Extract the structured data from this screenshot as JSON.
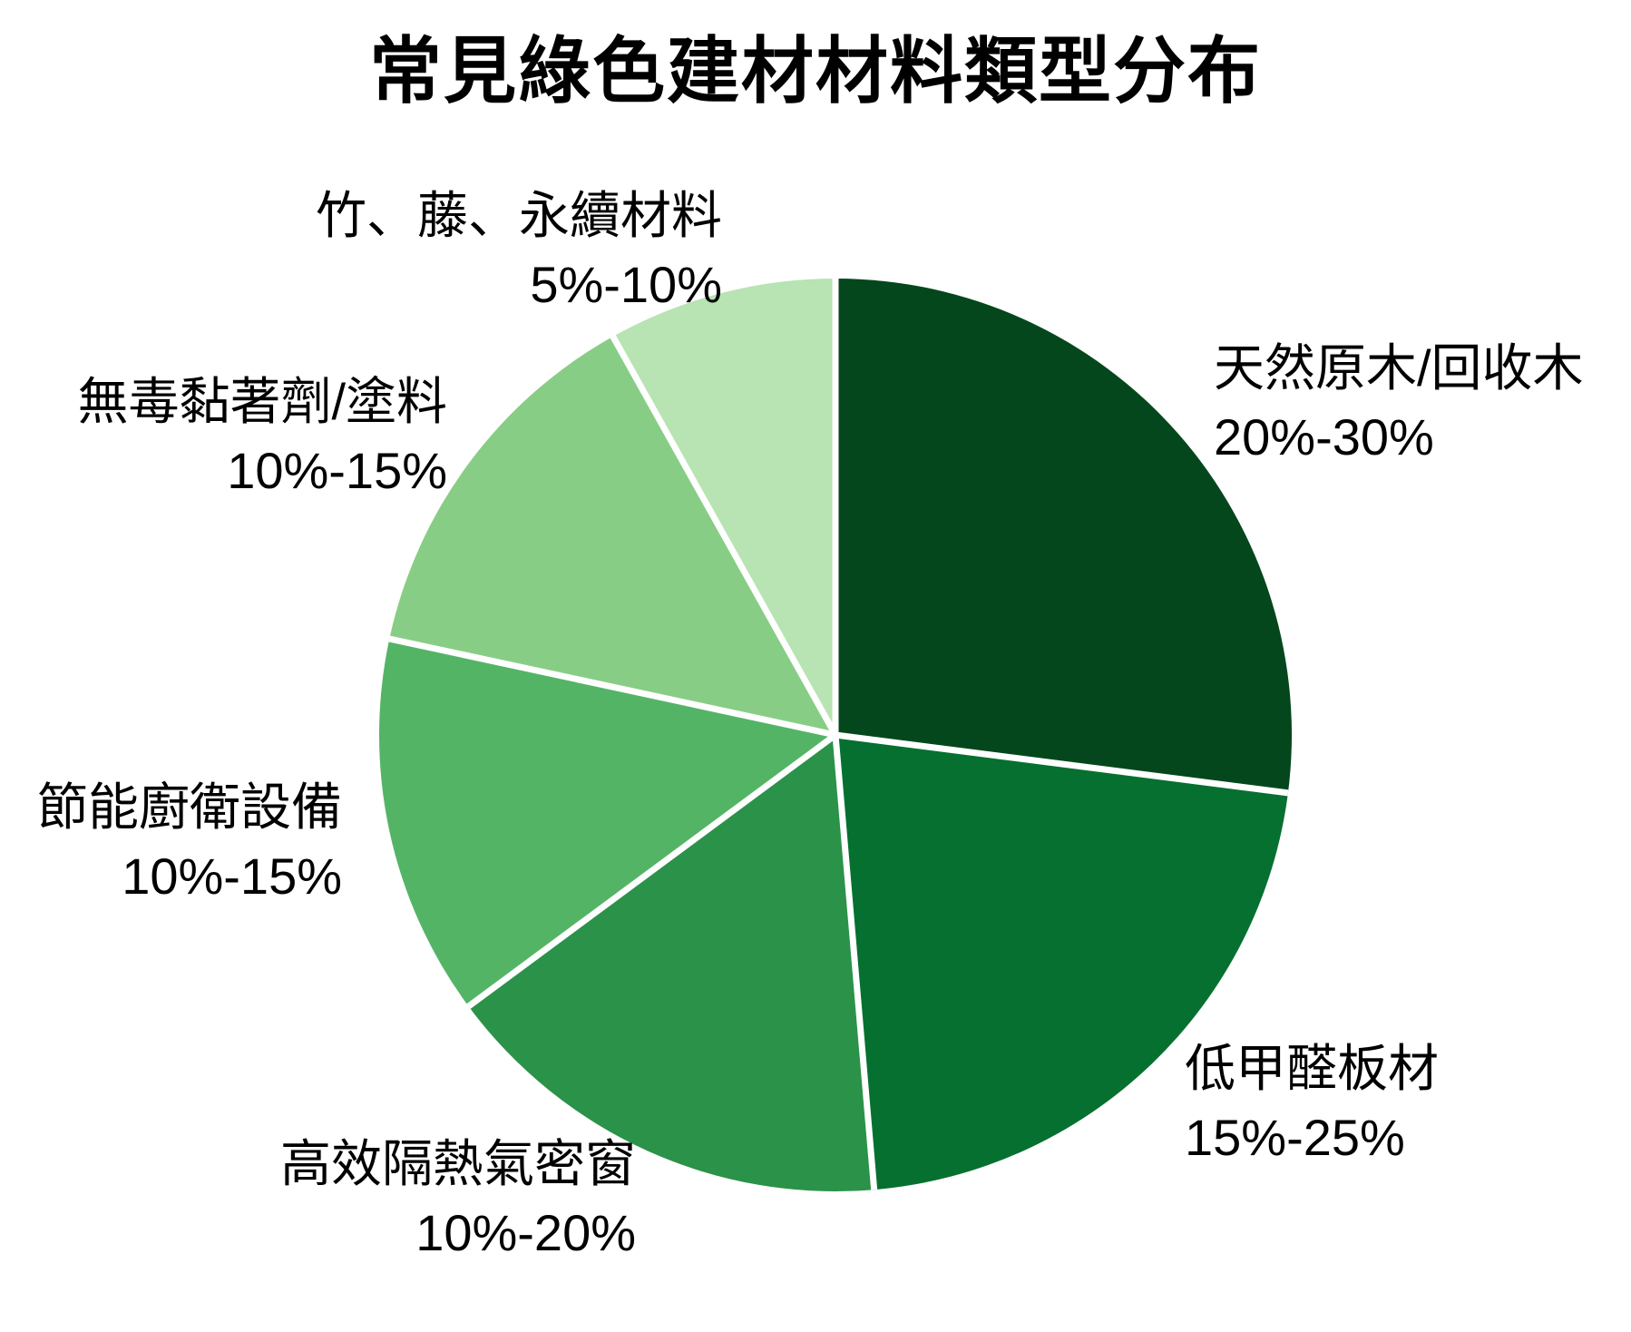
{
  "chart_data": {
    "type": "pie",
    "title": "常見綠色建材材料類型分布",
    "legend": "none",
    "start_angle_deg": 0,
    "direction": "clockwise",
    "slice_divider_color": "#ffffff",
    "background_color": "#ffffff",
    "slices": [
      {
        "label": "天然原木/回收木",
        "value_label": "20%-30%",
        "range_pct": [
          20,
          30
        ],
        "weight": 25,
        "color": "#04471c"
      },
      {
        "label": "低甲醛板材",
        "value_label": "15%-25%",
        "range_pct": [
          15,
          25
        ],
        "weight": 20,
        "color": "#067030"
      },
      {
        "label": "高效隔熱氣密窗",
        "value_label": "10%-20%",
        "range_pct": [
          10,
          20
        ],
        "weight": 15,
        "color": "#2b9249"
      },
      {
        "label": "節能廚衛設備",
        "value_label": "10%-15%",
        "range_pct": [
          10,
          15
        ],
        "weight": 12.5,
        "color": "#54b466"
      },
      {
        "label": "無毒黏著劑/塗料",
        "value_label": "10%-15%",
        "range_pct": [
          10,
          15
        ],
        "weight": 12.5,
        "color": "#88cd85"
      },
      {
        "label": "竹、藤、永續材料",
        "value_label": "5%-10%",
        "range_pct": [
          5,
          10
        ],
        "weight": 7.5,
        "color": "#b8e3b2"
      }
    ]
  }
}
